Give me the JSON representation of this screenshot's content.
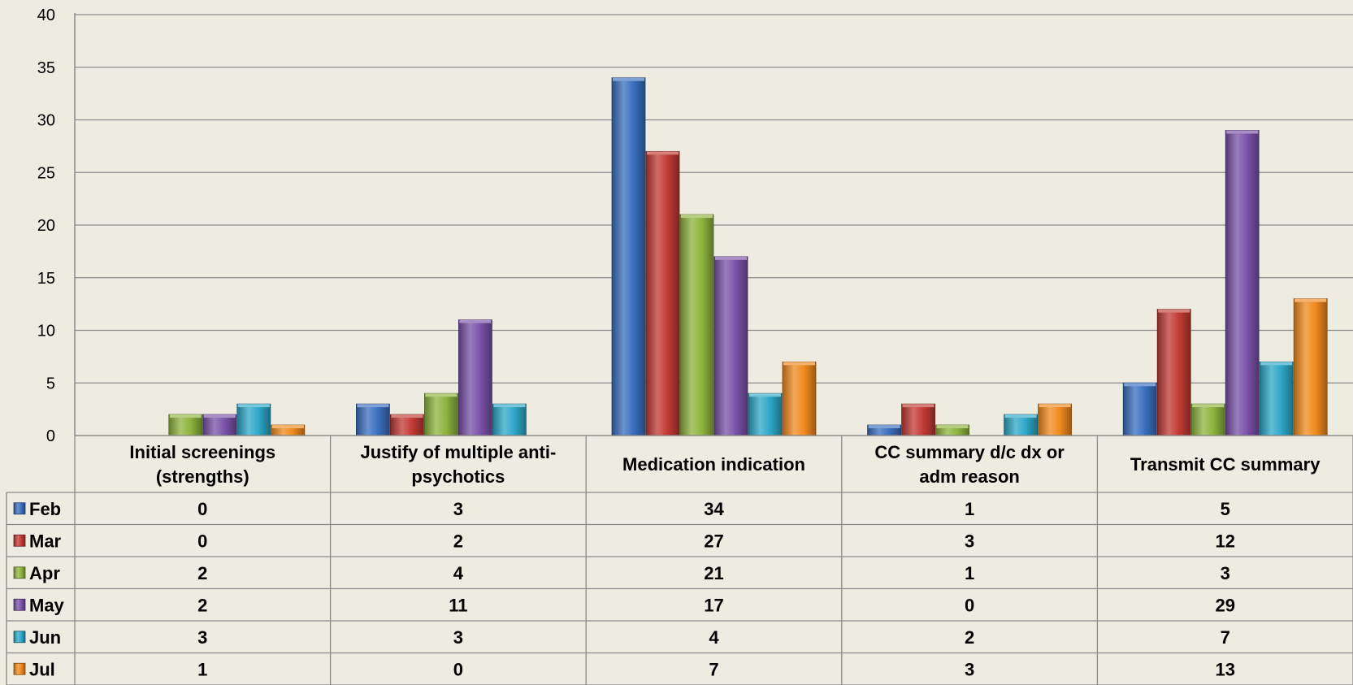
{
  "chart_data": {
    "type": "bar",
    "categories": [
      [
        "Initial screenings",
        "(strengths)"
      ],
      [
        "Justify of multiple anti-",
        "psychotics"
      ],
      [
        "Medication  indication"
      ],
      [
        "CC summary d/c dx or",
        "adm reason"
      ],
      [
        "Transmit CC summary"
      ]
    ],
    "series": [
      {
        "name": "Feb",
        "color": "#3A6FBF",
        "values": [
          0,
          3,
          34,
          1,
          5
        ]
      },
      {
        "name": "Mar",
        "color": "#C23A34",
        "values": [
          0,
          2,
          27,
          3,
          12
        ]
      },
      {
        "name": "Apr",
        "color": "#8DB43E",
        "values": [
          2,
          4,
          21,
          1,
          3
        ]
      },
      {
        "name": "May",
        "color": "#7A52A8",
        "values": [
          2,
          11,
          17,
          0,
          29
        ]
      },
      {
        "name": "Jun",
        "color": "#2EA7C8",
        "values": [
          3,
          3,
          4,
          2,
          7
        ]
      },
      {
        "name": "Jul",
        "color": "#F08A1E",
        "values": [
          1,
          0,
          7,
          3,
          13
        ]
      }
    ],
    "y_ticks": [
      "0",
      "5",
      "10",
      "15",
      "20",
      "25",
      "30",
      "35",
      "40"
    ],
    "ylim": [
      0,
      40
    ],
    "grid": true,
    "legend": "data-table-left"
  }
}
